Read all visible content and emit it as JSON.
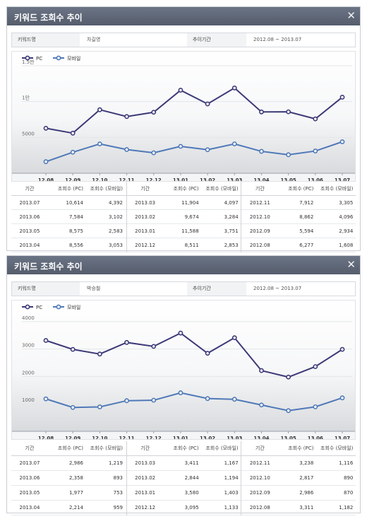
{
  "panels": [
    {
      "title": "키워드 조회수 추이",
      "close_icon": "close-icon",
      "info": {
        "keyword_label": "키워드명",
        "keyword_value": "차길영",
        "period_label": "추이기간",
        "period_value": "2012.08 ~ 2013.07"
      },
      "chart_data": {
        "type": "line",
        "categories": [
          "12.08",
          "12.09",
          "12.10",
          "12.11",
          "12.12",
          "13.01",
          "13.02",
          "13.03",
          "13.04",
          "13.05",
          "13.06",
          "13.07"
        ],
        "series": [
          {
            "name": "PC",
            "color": "#3d3a78",
            "values": [
              6277,
              5594,
              8862,
              7912,
              8511,
              11588,
              9674,
              11904,
              8556,
              8575,
              7584,
              10614
            ]
          },
          {
            "name": "모바일",
            "color": "#4f79b8",
            "values": [
              1608,
              2934,
              4096,
              3305,
              2853,
              3751,
              3284,
              4097,
              3053,
              2583,
              3102,
              4392
            ]
          }
        ],
        "ylim": [
          0,
          15000
        ],
        "yticks": [
          {
            "v": 5000,
            "label": "5000"
          },
          {
            "v": 10000,
            "label": "1만"
          },
          {
            "v": 15000,
            "label": "1.5만"
          }
        ],
        "legend": "top-left"
      },
      "table": {
        "headers": [
          "기간",
          "조회수 (PC)",
          "조회수 (모바일)"
        ],
        "columns": [
          [
            [
              "2013.07",
              "10,614",
              "4,392"
            ],
            [
              "2013.06",
              "7,584",
              "3,102"
            ],
            [
              "2013.05",
              "8,575",
              "2,583"
            ],
            [
              "2013.04",
              "8,556",
              "3,053"
            ]
          ],
          [
            [
              "2013.03",
              "11,904",
              "4,097"
            ],
            [
              "2013.02",
              "9,674",
              "3,284"
            ],
            [
              "2013.01",
              "11,588",
              "3,751"
            ],
            [
              "2012.12",
              "8,511",
              "2,853"
            ]
          ],
          [
            [
              "2012.11",
              "7,912",
              "3,305"
            ],
            [
              "2012.10",
              "8,862",
              "4,096"
            ],
            [
              "2012.09",
              "5,594",
              "2,934"
            ],
            [
              "2012.08",
              "6,277",
              "1,608"
            ]
          ]
        ]
      }
    },
    {
      "title": "키워드 조회수 추이",
      "close_icon": "close-icon",
      "info": {
        "keyword_label": "키워드명",
        "keyword_value": "박승철",
        "period_label": "추이기간",
        "period_value": "2012.08 ~ 2013.07"
      },
      "chart_data": {
        "type": "line",
        "categories": [
          "12.08",
          "12.09",
          "12.10",
          "12.11",
          "12.12",
          "13.01",
          "13.02",
          "13.03",
          "13.04",
          "13.05",
          "13.06",
          "13.07"
        ],
        "series": [
          {
            "name": "PC",
            "color": "#3d3a78",
            "values": [
              3311,
              2986,
              2817,
              3238,
              3095,
              3580,
              2844,
              3411,
              2214,
              1977,
              2358,
              2986
            ]
          },
          {
            "name": "모바일",
            "color": "#4f79b8",
            "values": [
              1182,
              870,
              890,
              1116,
              1133,
              1403,
              1194,
              1167,
              959,
              753,
              893,
              1219
            ]
          }
        ],
        "ylim": [
          0,
          4200
        ],
        "yticks": [
          {
            "v": 1000,
            "label": "1000"
          },
          {
            "v": 2000,
            "label": "2000"
          },
          {
            "v": 3000,
            "label": "3000"
          },
          {
            "v": 4000,
            "label": "4000"
          }
        ],
        "legend": "top-left"
      },
      "table": {
        "headers": [
          "기간",
          "조회수 (PC)",
          "조회수 (모바일)"
        ],
        "columns": [
          [
            [
              "2013.07",
              "2,986",
              "1,219"
            ],
            [
              "2013.06",
              "2,358",
              "893"
            ],
            [
              "2013.05",
              "1,977",
              "753"
            ],
            [
              "2013.04",
              "2,214",
              "959"
            ]
          ],
          [
            [
              "2013.03",
              "3,411",
              "1,167"
            ],
            [
              "2013.02",
              "2,844",
              "1,194"
            ],
            [
              "2013.01",
              "3,580",
              "1,403"
            ],
            [
              "2012.12",
              "3,095",
              "1,133"
            ]
          ],
          [
            [
              "2012.11",
              "3,238",
              "1,116"
            ],
            [
              "2012.10",
              "2,817",
              "890"
            ],
            [
              "2012.09",
              "2,986",
              "870"
            ],
            [
              "2012.08",
              "3,311",
              "1,182"
            ]
          ]
        ]
      }
    }
  ]
}
